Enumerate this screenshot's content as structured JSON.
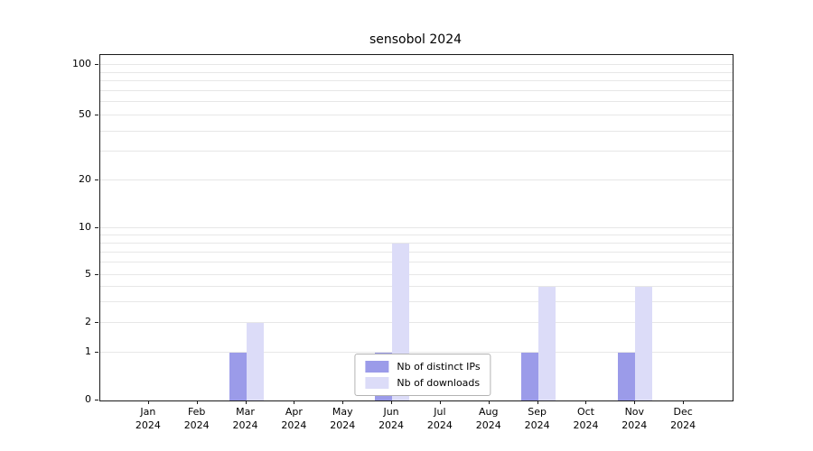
{
  "chart_data": {
    "type": "bar",
    "title": "sensobol 2024",
    "categories": [
      "Jan",
      "Feb",
      "Mar",
      "Apr",
      "May",
      "Jun",
      "Jul",
      "Aug",
      "Sep",
      "Oct",
      "Nov",
      "Dec"
    ],
    "year_label": "2024",
    "series": [
      {
        "name": "Nb of distinct IPs",
        "color": "#9b9be9",
        "values": [
          0,
          0,
          1,
          0,
          0,
          1,
          0,
          0,
          1,
          0,
          1,
          0
        ]
      },
      {
        "name": "Nb of downloads",
        "color": "#dcdcf8",
        "values": [
          0,
          0,
          2,
          0,
          0,
          8,
          0,
          0,
          4,
          0,
          4,
          0
        ]
      }
    ],
    "y_ticks": [
      0,
      1,
      2,
      5,
      10,
      20,
      50,
      100
    ],
    "ylim": [
      0,
      110
    ],
    "xlabel": "",
    "ylabel": "",
    "grid": true,
    "grid_minor_values": [
      3,
      4,
      6,
      7,
      8,
      9,
      30,
      40,
      60,
      70,
      80,
      90
    ],
    "legend_position": "lower center inside",
    "axis_color": "#1a1a1a",
    "grid_color": "#e7e7e7"
  }
}
